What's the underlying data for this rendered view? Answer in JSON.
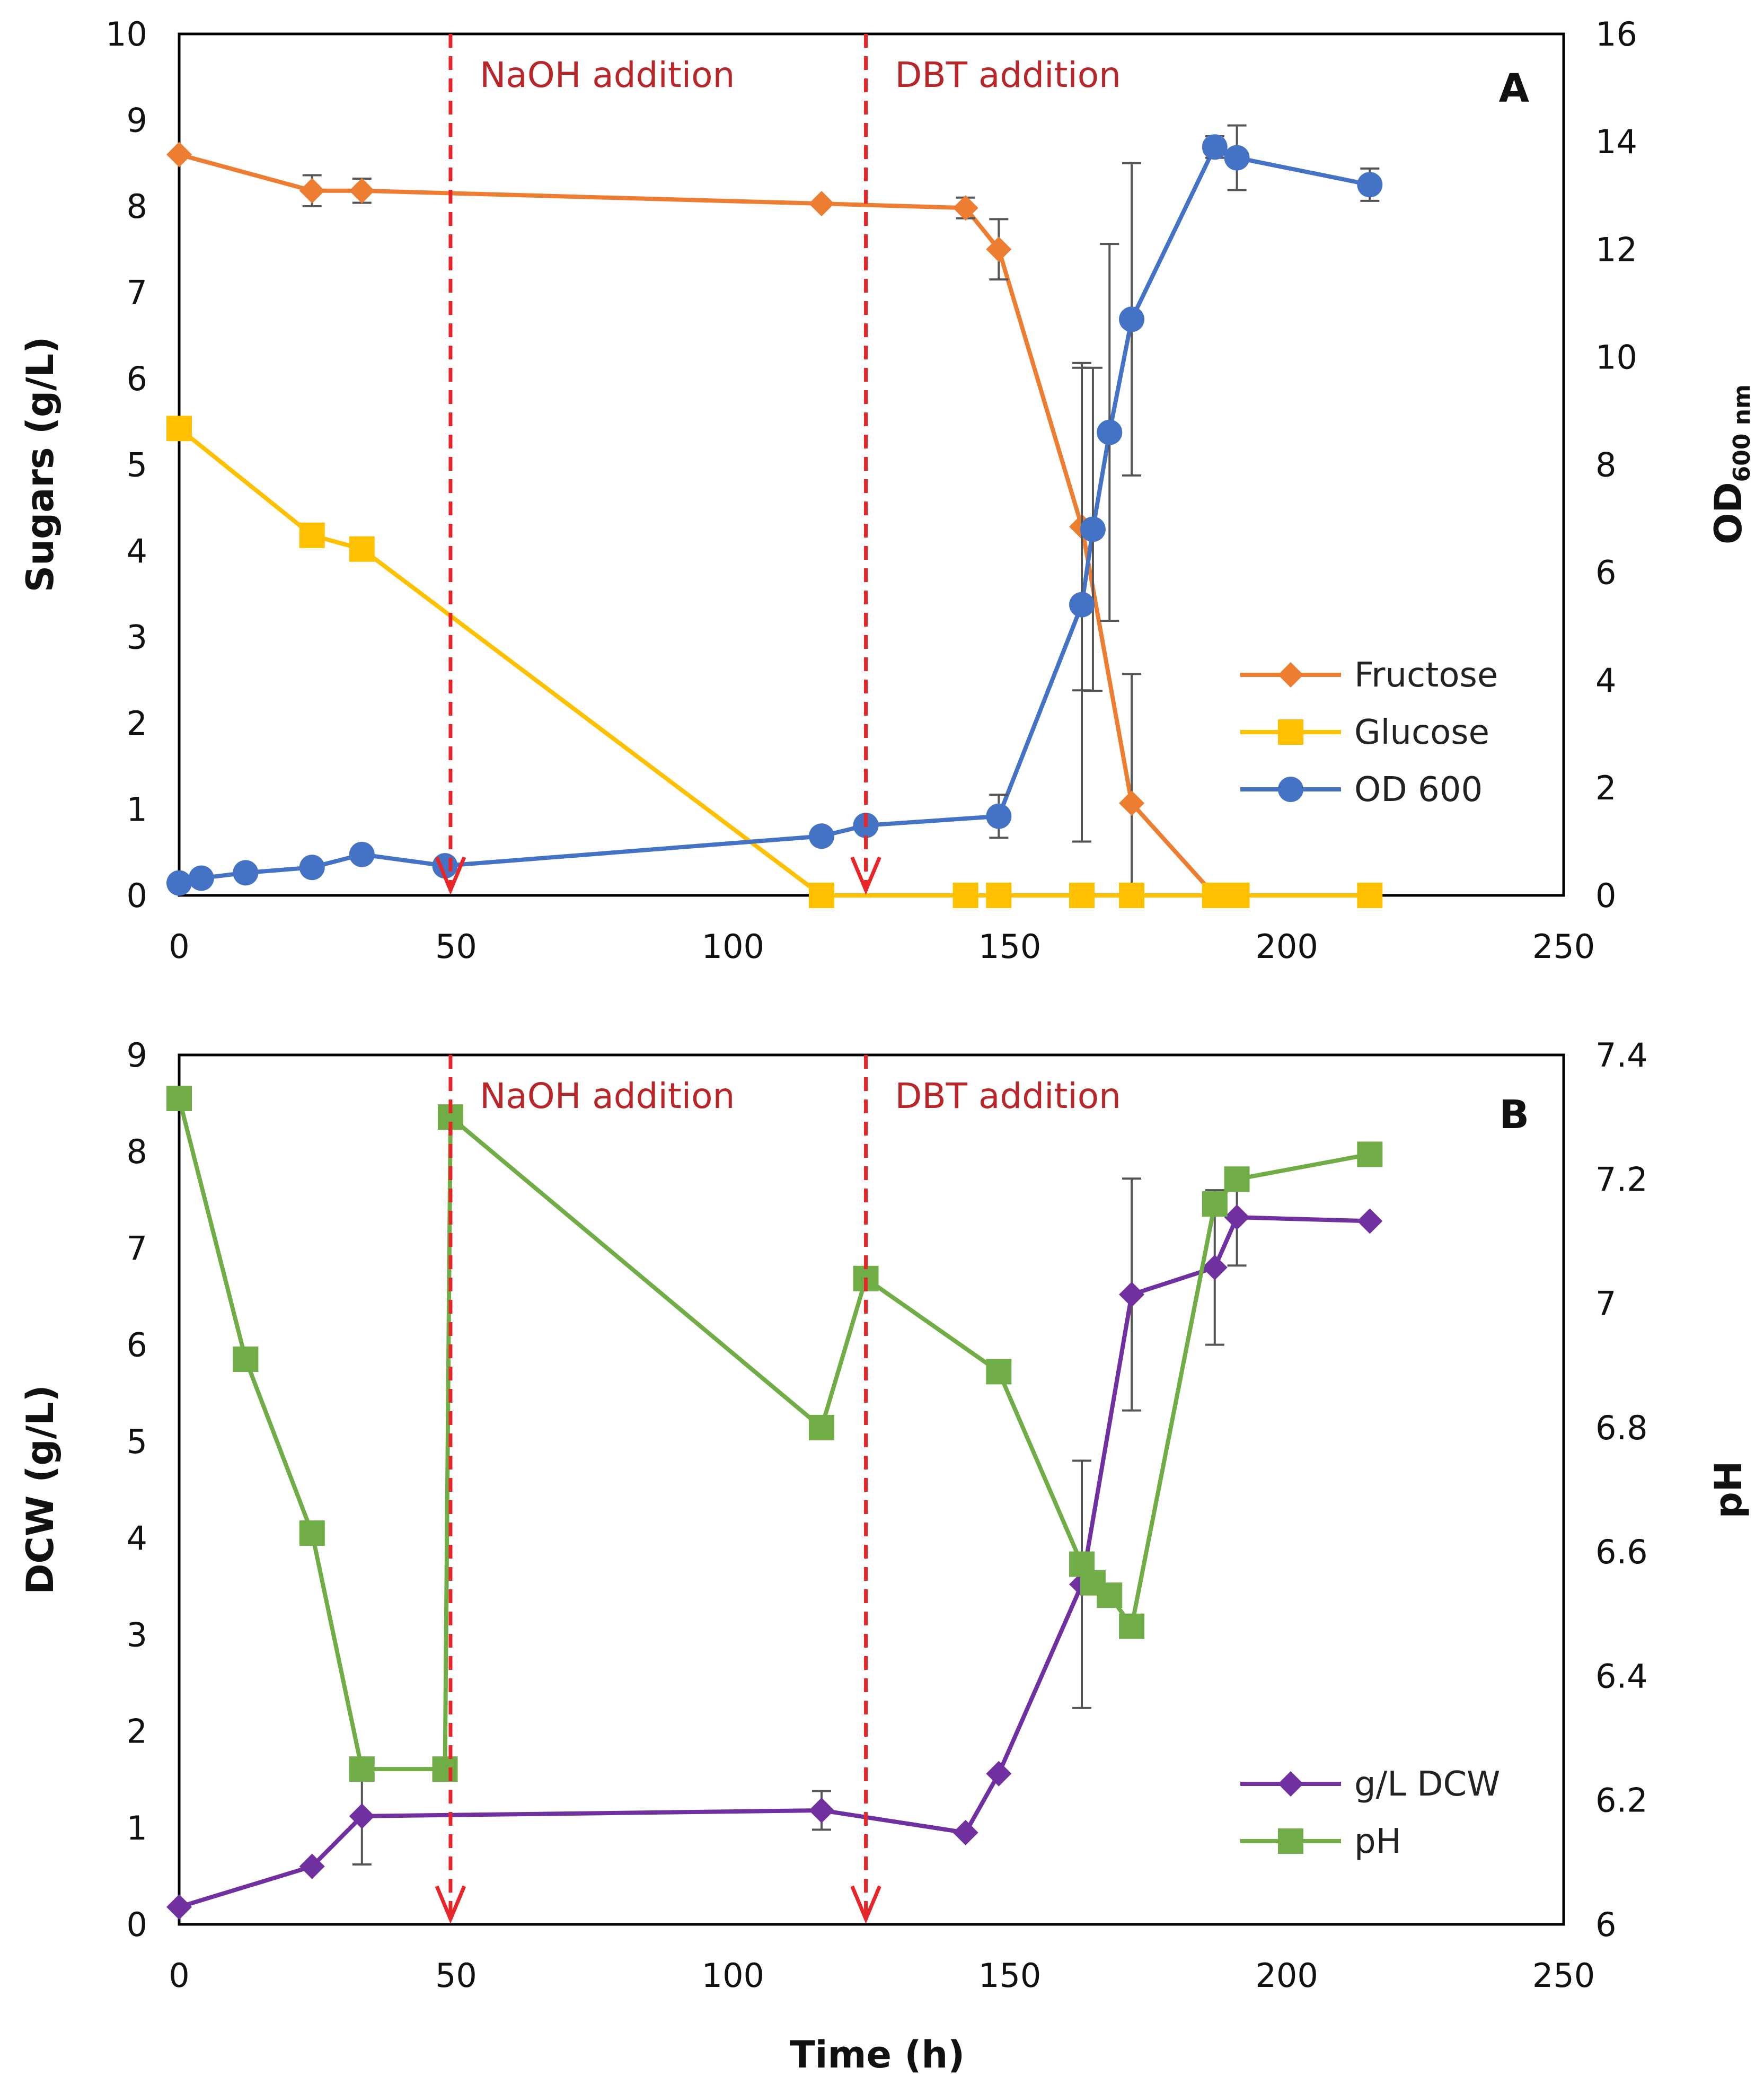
{
  "chart_data": [
    {
      "type": "line",
      "panel_label": "A",
      "xlabel": "",
      "ylabel": "Sugars (g/L)",
      "y2label_main": "OD",
      "y2label_sub": "600 nm",
      "xlim": [
        0,
        250
      ],
      "ylim": [
        0,
        10
      ],
      "y2lim": [
        0,
        16
      ],
      "xticks": [
        "0",
        "50",
        "100",
        "150",
        "200",
        "250"
      ],
      "yticks": [
        "0",
        "1",
        "2",
        "3",
        "4",
        "5",
        "6",
        "7",
        "8",
        "9",
        "10"
      ],
      "y2ticks": [
        "0",
        "2",
        "4",
        "6",
        "8",
        "10",
        "12",
        "14",
        "16"
      ],
      "series": [
        {
          "name": "Fructose",
          "axis": "left",
          "marker": "diamond",
          "color": "#ED7D31",
          "x": [
            0,
            24,
            33,
            116,
            142,
            148,
            163,
            172,
            187,
            191
          ],
          "y": [
            8.6,
            8.18,
            8.18,
            8.03,
            7.98,
            7.5,
            4.28,
            1.07,
            0.0,
            0.0
          ],
          "err": [
            0,
            0.18,
            0.14,
            0,
            0.12,
            0.35,
            1.9,
            1.5,
            0,
            0
          ]
        },
        {
          "name": "Glucose",
          "axis": "left",
          "marker": "square",
          "color": "#FFC000",
          "x": [
            0,
            24,
            33,
            116,
            142,
            148,
            163,
            172,
            187,
            191,
            215
          ],
          "y": [
            5.42,
            4.18,
            4.02,
            0.0,
            0.0,
            0.0,
            0.0,
            0.0,
            0.0,
            0.0,
            0.0
          ],
          "err": [
            0,
            0,
            0,
            0,
            0,
            0,
            0,
            0,
            0,
            0,
            0
          ]
        },
        {
          "name": "OD 600",
          "axis": "right",
          "marker": "circle",
          "color": "#4472C4",
          "x": [
            0,
            4,
            12,
            24,
            33,
            48,
            116,
            124,
            148,
            163,
            165,
            168,
            172,
            187,
            191,
            215
          ],
          "y": [
            0.23,
            0.32,
            0.42,
            0.52,
            0.76,
            0.55,
            1.1,
            1.3,
            1.47,
            5.4,
            6.8,
            8.6,
            10.7,
            13.9,
            13.7,
            13.2
          ],
          "err": [
            0,
            0,
            0,
            0,
            0,
            0,
            0,
            0,
            0.4,
            4.4,
            3.0,
            3.5,
            2.9,
            0.2,
            0.6,
            0.3
          ]
        }
      ],
      "annotations": [
        {
          "text": "NaOH addition",
          "x": 49
        },
        {
          "text": "DBT addition",
          "x": 124
        }
      ],
      "legend": "center-right"
    },
    {
      "type": "line",
      "panel_label": "B",
      "xlabel": "Time (h)",
      "ylabel": "DCW (g/L)",
      "y2label": "pH",
      "xlim": [
        0,
        250
      ],
      "ylim": [
        0,
        9
      ],
      "y2lim": [
        6,
        7.4
      ],
      "xticks": [
        "0",
        "50",
        "100",
        "150",
        "200",
        "250"
      ],
      "yticks": [
        "0",
        "1",
        "2",
        "3",
        "4",
        "5",
        "6",
        "7",
        "8",
        "9"
      ],
      "y2ticks": [
        "6",
        "6.2",
        "6.4",
        "6.6",
        "6.8",
        "7",
        "7.2",
        "7.4"
      ],
      "series": [
        {
          "name": "g/L DCW",
          "axis": "left",
          "marker": "diamond",
          "color": "#7030A0",
          "x": [
            0,
            24,
            33,
            116,
            142,
            148,
            163,
            172,
            187,
            191,
            215
          ],
          "y": [
            0.18,
            0.6,
            1.12,
            1.18,
            0.95,
            1.56,
            3.52,
            6.52,
            6.8,
            7.32,
            7.28
          ],
          "err": [
            0,
            0,
            0.5,
            0.2,
            0,
            0,
            1.28,
            1.2,
            0.8,
            0.5,
            0
          ]
        },
        {
          "name": "pH",
          "axis": "right",
          "marker": "square",
          "color": "#70AD47",
          "x": [
            0,
            12,
            24,
            33,
            48,
            49,
            116,
            124,
            148,
            163,
            165,
            168,
            172,
            187,
            191,
            215
          ],
          "y": [
            7.33,
            6.91,
            6.63,
            6.25,
            6.25,
            7.3,
            6.8,
            7.04,
            6.89,
            6.58,
            6.55,
            6.53,
            6.48,
            7.16,
            7.2,
            7.24
          ],
          "err": [
            0,
            0,
            0,
            0,
            0,
            0,
            0,
            0,
            0,
            0,
            0,
            0,
            0,
            0,
            0,
            0
          ]
        }
      ],
      "annotations": [
        {
          "text": "NaOH addition",
          "x": 49
        },
        {
          "text": "DBT addition",
          "x": 124
        }
      ],
      "legend": "bottom-right"
    }
  ]
}
